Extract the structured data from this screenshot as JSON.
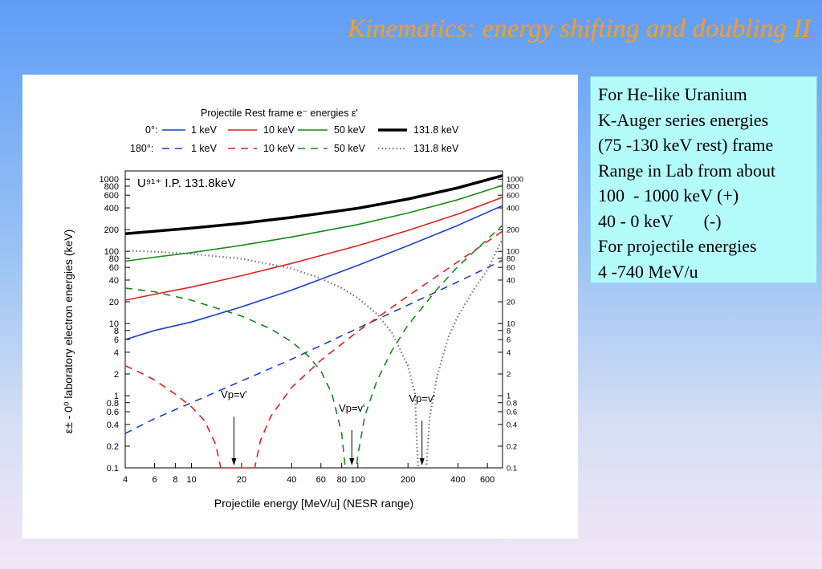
{
  "slide": {
    "title": "Kinematics: energy shifting and doubling II"
  },
  "info_box": {
    "lines": [
      "For He-like Uranium",
      "K-Auger series energies",
      "(75 -130 keV rest) frame",
      "Range in Lab from about",
      "100  - 1000 keV (+)",
      "40 - 0 keV       (-)",
      "For projectile energies",
      "4 -740 MeV/u"
    ]
  },
  "chart_data": {
    "type": "line",
    "title": "Projectile Rest frame e⁻ energies ε'",
    "xlabel": "Projectile energy [MeV/u] (NESR range)",
    "ylabel": "ε± - 0⁰ laboratory electron energies (keV)",
    "annotation": "U⁹¹⁺ I.P. 131.8keV",
    "x_scale": "log",
    "y_scale": "log",
    "xlim": [
      4,
      740
    ],
    "ylim": [
      0.1,
      1300
    ],
    "x_ticks": [
      4,
      6,
      8,
      10,
      20,
      40,
      60,
      80,
      100,
      200,
      400,
      600
    ],
    "y_ticks": [
      0.1,
      0.2,
      0.4,
      0.6,
      0.8,
      1,
      2,
      4,
      6,
      8,
      10,
      20,
      40,
      60,
      80,
      100,
      200,
      400,
      600,
      800,
      1000
    ],
    "legend": {
      "row_0_label": "0°:",
      "row_180_label": "180°:",
      "energies": [
        "1 keV",
        "10 keV",
        "50 keV",
        "131.8 keV"
      ],
      "colors": [
        "#1a3fcc",
        "#e02020",
        "#188a18",
        "#000000"
      ]
    },
    "vp_markers": [
      {
        "label": "Vp=v'",
        "x": 18
      },
      {
        "label": "Vp=v'",
        "x": 92
      },
      {
        "label": "Vp=v'",
        "x": 243
      }
    ],
    "series": [
      {
        "name": "1 keV",
        "angle": "0°",
        "x": [
          4,
          6,
          10,
          20,
          40,
          100,
          200,
          400,
          740
        ],
        "values": [
          6,
          8,
          10.5,
          17,
          29,
          64,
          120,
          230,
          430
        ]
      },
      {
        "name": "10 keV",
        "angle": "0°",
        "x": [
          4,
          6,
          10,
          20,
          40,
          100,
          200,
          400,
          740
        ],
        "values": [
          21,
          25.5,
          32,
          46,
          68,
          120,
          195,
          330,
          560
        ]
      },
      {
        "name": "50 keV",
        "angle": "0°",
        "x": [
          4,
          6,
          10,
          20,
          40,
          100,
          200,
          400,
          740
        ],
        "values": [
          73,
          83,
          96,
          121,
          158,
          235,
          340,
          520,
          820
        ]
      },
      {
        "name": "131.8 keV",
        "angle": "0°",
        "x": [
          4,
          6,
          10,
          20,
          40,
          100,
          200,
          400,
          740
        ],
        "values": [
          175,
          190,
          210,
          245,
          295,
          395,
          530,
          760,
          1120
        ]
      },
      {
        "name": "1 keV",
        "angle": "180°",
        "x": [
          4,
          6,
          10,
          20,
          40,
          100,
          200,
          400,
          740
        ],
        "values": [
          0.3,
          0.48,
          0.8,
          1.6,
          3.2,
          8.6,
          18,
          38,
          75
        ]
      },
      {
        "name": "10 keV",
        "angle": "180°",
        "x": [
          4,
          5,
          6,
          8,
          10,
          12,
          14,
          15,
          24,
          26,
          30,
          40,
          60,
          100,
          200,
          400,
          740
        ],
        "values": [
          2.6,
          2.05,
          1.65,
          1.05,
          0.7,
          0.45,
          0.21,
          0.1,
          0.1,
          0.24,
          0.52,
          1.3,
          3.1,
          7.8,
          24,
          72,
          190
        ]
      },
      {
        "name": "50 keV",
        "angle": "180°",
        "x": [
          4,
          6,
          10,
          20,
          30,
          40,
          50,
          60,
          70,
          80,
          84,
          98,
          100,
          110,
          130,
          160,
          200,
          300,
          400,
          740
        ],
        "values": [
          31,
          27.5,
          21,
          12.7,
          8.4,
          5.6,
          3.6,
          2.2,
          1.05,
          0.3,
          0.1,
          0.1,
          0.15,
          0.52,
          1.6,
          4.2,
          9.5,
          30,
          62,
          230
        ]
      },
      {
        "name": "131.8 keV",
        "angle": "180°",
        "x": [
          4,
          6,
          10,
          20,
          40,
          60,
          80,
          100,
          130,
          160,
          200,
          220,
          230,
          258,
          270,
          300,
          350,
          400,
          500,
          600,
          740
        ],
        "values": [
          102,
          99,
          92,
          79,
          58,
          42,
          31,
          22.5,
          13.6,
          7.5,
          2.6,
          1.1,
          0.1,
          0.1,
          0.5,
          1.9,
          6.5,
          12.8,
          30,
          55,
          150
        ]
      }
    ]
  }
}
